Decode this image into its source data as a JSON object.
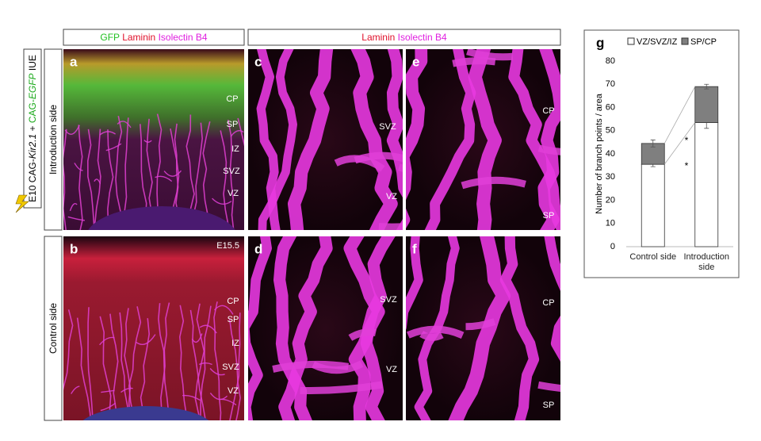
{
  "headers": {
    "left": [
      "GFP",
      "Laminin",
      "Isolectin B4"
    ],
    "right": [
      "Laminin",
      "Isolectin B4"
    ]
  },
  "side_labels": [
    "Introduction side",
    "Control side"
  ],
  "construct_label": [
    "E10 CAG-",
    "Kir2.1",
    "+",
    "CAG-",
    "EGFP",
    "IUE"
  ],
  "panels": [
    {
      "letter": "a",
      "regions": [
        "CP",
        "SP",
        "IZ",
        "SVZ",
        "VZ"
      ]
    },
    {
      "letter": "b",
      "stage": "E15.5",
      "regions": [
        "CP",
        "SP",
        "IZ",
        "SVZ",
        "VZ"
      ]
    },
    {
      "letter": "c",
      "regions": [
        "SVZ",
        "VZ"
      ]
    },
    {
      "letter": "d",
      "regions": [
        "SVZ",
        "VZ"
      ]
    },
    {
      "letter": "e",
      "regions": [
        "CP",
        "SP"
      ]
    },
    {
      "letter": "f",
      "regions": [
        "CP",
        "SP"
      ]
    }
  ],
  "chart_data": {
    "type": "bar",
    "stacked": true,
    "panel_label": "g",
    "ylabel": "Number of branch points / area",
    "categories": [
      "Control side",
      "Introduction side"
    ],
    "series": [
      {
        "name": "VZ/SVZ/IZ",
        "color": "#ffffff",
        "values": [
          35.5,
          53.5
        ],
        "errors": [
          1,
          2.5
        ]
      },
      {
        "name": "SP/CP",
        "color": "#7f7f7f",
        "values": [
          9,
          15.5
        ],
        "errors": [
          1.5,
          1
        ]
      }
    ],
    "annotations": [
      "*",
      "*"
    ],
    "ylim": [
      0,
      80
    ],
    "yticks": [
      0,
      10,
      20,
      30,
      40,
      50,
      60,
      70,
      80
    ],
    "grid": false
  }
}
